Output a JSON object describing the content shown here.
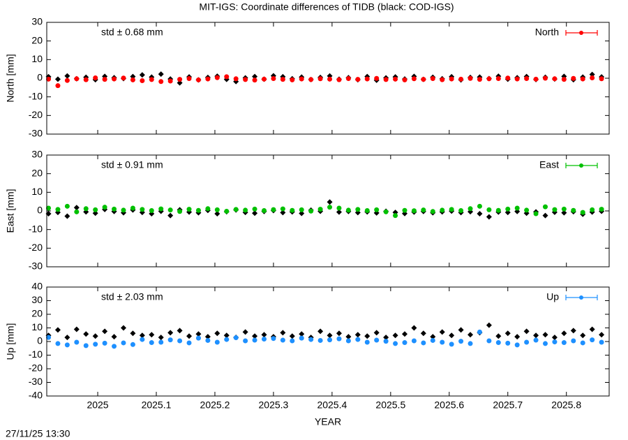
{
  "title": "MIT-IGS: Coordinate differences of TIDB (black: COD-IGS)",
  "timestamp": "27/11/25 13:30",
  "chart_data": [
    {
      "type": "scatter",
      "ylabel": "North [mm]",
      "annotation": "std ± 0.68 mm",
      "xlim": [
        2024.913,
        2025.873
      ],
      "ylim": [
        -30,
        30
      ],
      "yticks": [
        -30,
        -20,
        -10,
        0,
        10,
        20,
        30
      ],
      "x": [
        2024.916,
        2024.932,
        2024.948,
        2024.964,
        2024.98,
        2024.996,
        2025.012,
        2025.028,
        2025.044,
        2025.06,
        2025.076,
        2025.092,
        2025.108,
        2025.124,
        2025.14,
        2025.156,
        2025.172,
        2025.188,
        2025.204,
        2025.22,
        2025.236,
        2025.252,
        2025.268,
        2025.284,
        2025.3,
        2025.316,
        2025.332,
        2025.348,
        2025.364,
        2025.38,
        2025.396,
        2025.412,
        2025.428,
        2025.444,
        2025.46,
        2025.476,
        2025.492,
        2025.508,
        2025.524,
        2025.54,
        2025.556,
        2025.572,
        2025.588,
        2025.604,
        2025.62,
        2025.636,
        2025.652,
        2025.668,
        2025.684,
        2025.7,
        2025.716,
        2025.732,
        2025.748,
        2025.764,
        2025.78,
        2025.796,
        2025.812,
        2025.828,
        2025.844,
        2025.86
      ],
      "series": [
        {
          "color": "#000000",
          "values": [
            0.8,
            -0.5,
            1.2,
            -0.3,
            0.5,
            -0.8,
            1.0,
            0.3,
            -0.2,
            0.9,
            1.8,
            0.6,
            2.2,
            -0.4,
            -2.5,
            0.7,
            -0.9,
            0.4,
            1.1,
            -0.6,
            -1.8,
            0.2,
            0.9,
            -0.5,
            1.3,
            0.8,
            -0.3,
            0.6,
            -0.7,
            0.4,
            1.2,
            -0.5,
            0.3,
            -0.8,
            0.9,
            -1.1,
            0.2,
            0.7,
            -0.4,
            1.0,
            -0.6,
            0.5,
            -0.3,
            0.8,
            -0.9,
            0.4,
            0.6,
            -0.2,
            1.1,
            -0.5,
            0.3,
            0.9,
            -0.7,
            0.5,
            -0.4,
            1.0,
            -0.8,
            0.6,
            2.0,
            0.7
          ]
        },
        {
          "name": "North",
          "color": "#ff0000",
          "values": [
            -0.5,
            -4.0,
            -1.2,
            -0.3,
            -0.8,
            0.2,
            -0.6,
            -0.4,
            0.1,
            -0.9,
            -1.3,
            -0.7,
            -1.8,
            -1.5,
            -0.6,
            -0.2,
            -0.9,
            -0.4,
            0.3,
            0.8,
            -0.3,
            -0.7,
            -1.0,
            -0.5,
            -0.2,
            -0.6,
            -0.9,
            -0.4,
            -0.7,
            -0.3,
            -0.5,
            -0.8,
            -0.2,
            -0.6,
            -0.4,
            -0.1,
            -0.7,
            -0.5,
            -0.9,
            -0.3,
            -0.6,
            -0.2,
            -0.8,
            -0.4,
            -0.5,
            -0.1,
            -0.6,
            -0.3,
            -0.2,
            0.1,
            -0.4,
            -0.2,
            -0.5,
            0.0,
            -0.3,
            -0.6,
            -0.1,
            -0.4,
            0.2,
            -0.3
          ]
        }
      ]
    },
    {
      "type": "scatter",
      "ylabel": "East [mm]",
      "annotation": "std ± 0.91 mm",
      "xlim": [
        2024.913,
        2025.873
      ],
      "ylim": [
        -30,
        30
      ],
      "yticks": [
        -30,
        -20,
        -10,
        0,
        10,
        20,
        30
      ],
      "x": [
        2024.916,
        2024.932,
        2024.948,
        2024.964,
        2024.98,
        2024.996,
        2025.012,
        2025.028,
        2025.044,
        2025.06,
        2025.076,
        2025.092,
        2025.108,
        2025.124,
        2025.14,
        2025.156,
        2025.172,
        2025.188,
        2025.204,
        2025.22,
        2025.236,
        2025.252,
        2025.268,
        2025.284,
        2025.3,
        2025.316,
        2025.332,
        2025.348,
        2025.364,
        2025.38,
        2025.396,
        2025.412,
        2025.428,
        2025.444,
        2025.46,
        2025.476,
        2025.492,
        2025.508,
        2025.524,
        2025.54,
        2025.556,
        2025.572,
        2025.588,
        2025.604,
        2025.62,
        2025.636,
        2025.652,
        2025.668,
        2025.684,
        2025.7,
        2025.716,
        2025.732,
        2025.748,
        2025.764,
        2025.78,
        2025.796,
        2025.812,
        2025.828,
        2025.844,
        2025.86
      ],
      "series": [
        {
          "color": "#000000",
          "values": [
            -1.5,
            -0.8,
            -2.8,
            1.8,
            -0.5,
            -1.2,
            0.8,
            -0.3,
            -1.0,
            0.5,
            -0.8,
            -1.5,
            -0.2,
            -2.5,
            0.6,
            -0.6,
            -1.0,
            0.3,
            -1.5,
            -0.4,
            0.5,
            -0.8,
            -1.2,
            -0.3,
            0.2,
            -0.9,
            -0.5,
            -1.3,
            0.4,
            -0.2,
            4.8,
            -0.6,
            -0.3,
            -0.9,
            -0.5,
            -1.1,
            -0.2,
            -0.8,
            -1.4,
            -0.6,
            -0.3,
            -1.0,
            -0.5,
            -0.1,
            -0.9,
            -0.4,
            -1.5,
            -3.2,
            -0.6,
            -0.8,
            -0.3,
            -1.2,
            -0.5,
            -2.5,
            -0.7,
            -1.0,
            -0.4,
            -1.8,
            -0.6,
            -0.2
          ]
        },
        {
          "name": "East",
          "color": "#00c000",
          "values": [
            1.5,
            0.8,
            2.5,
            -0.5,
            1.2,
            0.6,
            2.0,
            1.0,
            0.4,
            1.5,
            0.8,
            0.2,
            1.1,
            0.5,
            -0.3,
            0.9,
            0.3,
            1.2,
            0.6,
            -0.2,
            0.8,
            0.4,
            1.0,
            0.2,
            0.7,
            1.1,
            0.3,
            0.6,
            -0.1,
            0.9,
            2.0,
            1.5,
            0.4,
            0.8,
            0.2,
            0.6,
            -0.5,
            -2.5,
            0.3,
            0.1,
            0.5,
            -0.3,
            0.4,
            0.8,
            0.2,
            1.2,
            2.5,
            0.6,
            0.3,
            1.0,
            1.5,
            0.4,
            -1.5,
            2.2,
            0.7,
            1.0,
            0.3,
            -0.8,
            0.6,
            0.9
          ]
        }
      ]
    },
    {
      "type": "scatter",
      "ylabel": "Up [mm]",
      "annotation": "std ± 2.03 mm",
      "xlabel": "YEAR",
      "xlim": [
        2024.913,
        2025.873
      ],
      "ylim": [
        -40,
        40
      ],
      "yticks": [
        -40,
        -30,
        -20,
        -10,
        0,
        10,
        20,
        30,
        40
      ],
      "xticks": [
        2025,
        2025.1,
        2025.2,
        2025.3,
        2025.4,
        2025.5,
        2025.6,
        2025.7,
        2025.8
      ],
      "x": [
        2024.916,
        2024.932,
        2024.948,
        2024.964,
        2024.98,
        2024.996,
        2025.012,
        2025.028,
        2025.044,
        2025.06,
        2025.076,
        2025.092,
        2025.108,
        2025.124,
        2025.14,
        2025.156,
        2025.172,
        2025.188,
        2025.204,
        2025.22,
        2025.236,
        2025.252,
        2025.268,
        2025.284,
        2025.3,
        2025.316,
        2025.332,
        2025.348,
        2025.364,
        2025.38,
        2025.396,
        2025.412,
        2025.428,
        2025.444,
        2025.46,
        2025.476,
        2025.492,
        2025.508,
        2025.524,
        2025.54,
        2025.556,
        2025.572,
        2025.588,
        2025.604,
        2025.62,
        2025.636,
        2025.652,
        2025.668,
        2025.684,
        2025.7,
        2025.716,
        2025.732,
        2025.748,
        2025.764,
        2025.78,
        2025.796,
        2025.812,
        2025.828,
        2025.844,
        2025.86
      ],
      "series": [
        {
          "color": "#000000",
          "values": [
            4.5,
            8.5,
            3.0,
            9.0,
            5.5,
            4.0,
            7.5,
            3.5,
            10.0,
            6.0,
            4.5,
            5.0,
            3.0,
            6.5,
            8.0,
            4.0,
            5.5,
            3.5,
            6.0,
            4.5,
            3.0,
            7.0,
            4.0,
            5.0,
            3.5,
            6.5,
            4.0,
            5.5,
            3.0,
            7.5,
            4.5,
            6.0,
            3.5,
            5.0,
            4.0,
            6.5,
            3.0,
            4.5,
            5.5,
            10.0,
            6.0,
            3.5,
            7.0,
            4.5,
            8.5,
            5.0,
            6.5,
            12.0,
            4.0,
            6.0,
            3.5,
            7.5,
            4.5,
            5.0,
            3.0,
            6.0,
            8.0,
            4.5,
            9.0,
            5.0
          ]
        },
        {
          "name": "Up",
          "color": "#1e90ff",
          "values": [
            3.0,
            -1.5,
            -2.5,
            -0.5,
            -3.0,
            -2.0,
            -1.2,
            -3.5,
            -1.0,
            -2.2,
            1.5,
            -0.8,
            -0.5,
            1.2,
            0.5,
            -1.0,
            2.5,
            0.8,
            -0.5,
            1.5,
            2.8,
            0.5,
            1.0,
            1.8,
            2.2,
            1.0,
            0.5,
            2.5,
            1.5,
            0.8,
            1.2,
            2.0,
            0.5,
            1.5,
            -0.5,
            1.0,
            0.2,
            -1.5,
            -0.8,
            0.5,
            -1.0,
            0.8,
            -0.5,
            -2.0,
            0.2,
            -1.5,
            7.0,
            0.5,
            -0.8,
            -1.2,
            -2.5,
            -0.5,
            1.0,
            -1.5,
            -0.3,
            -0.8,
            0.5,
            -1.0,
            1.2,
            -0.5
          ]
        }
      ]
    }
  ]
}
